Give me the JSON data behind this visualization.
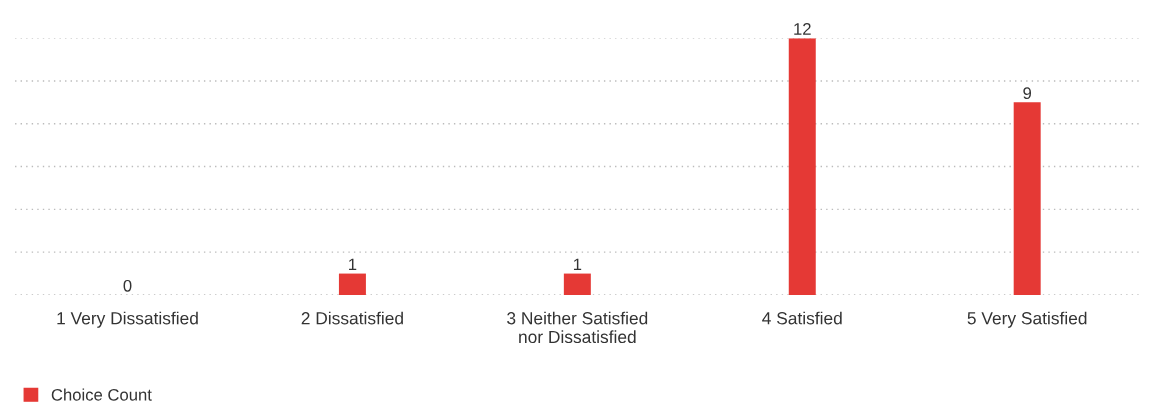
{
  "chart_data": {
    "type": "bar",
    "categories": [
      "1 Very Dissatisfied",
      "2 Dissatisfied",
      "3 Neither Satisfied\nnor Dissatisfied",
      "4 Satisfied",
      "5 Very Satisfied"
    ],
    "series": [
      {
        "name": "Choice Count",
        "color": "#e53935",
        "values": [
          0,
          1,
          1,
          12,
          9
        ]
      }
    ],
    "ylim": [
      0,
      12
    ],
    "yticks": [
      {
        "value": 0,
        "label": null
      },
      {
        "value": 2,
        "label": null
      },
      {
        "value": 4,
        "label": null
      },
      {
        "value": 6,
        "label": null
      },
      {
        "value": 8,
        "label": null
      },
      {
        "value": 10,
        "label": null
      },
      {
        "value": 12,
        "label": null
      }
    ],
    "tick_labels": "x",
    "grid": "y",
    "legend": "bottom left",
    "data_labels": true
  }
}
